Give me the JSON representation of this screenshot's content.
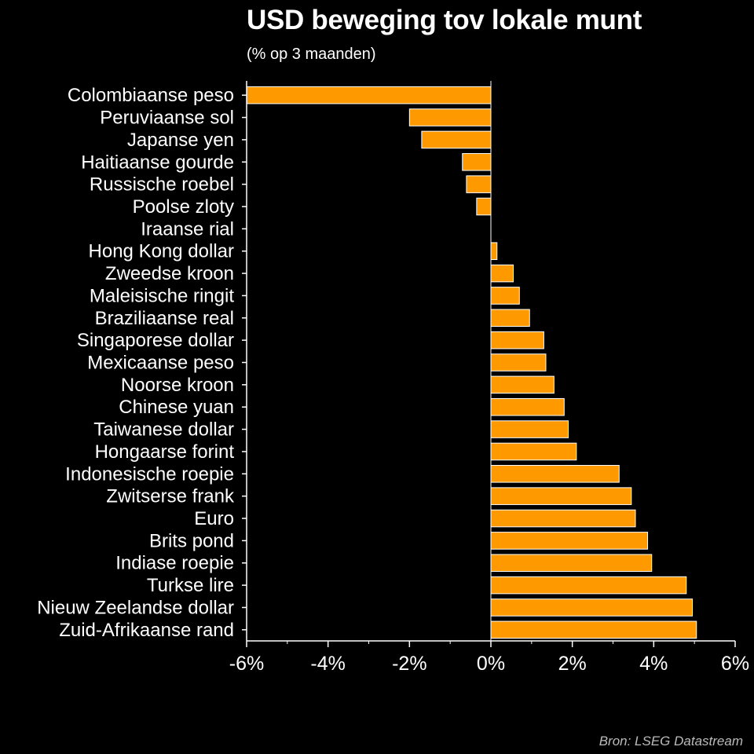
{
  "header": {
    "title": "USD beweging tov lokale munt",
    "subtitle": "(% op 3 maanden)"
  },
  "footer": {
    "source": "Bron: LSEG Datastream"
  },
  "colors": {
    "bar": "#FF9900",
    "bar_outline": "#FFFFFF",
    "background": "#000000",
    "axis": "#FFFFFF"
  },
  "chart_data": {
    "type": "bar",
    "orientation": "horizontal",
    "unit": "%",
    "categories": [
      "Colombiaanse peso",
      "Peruviaanse sol",
      "Japanse yen",
      "Haitiaanse gourde",
      "Russische roebel",
      "Poolse zloty",
      "Iraanse rial",
      "Hong Kong dollar",
      "Zweedse kroon",
      "Maleisische ringit",
      "Braziliaanse real",
      "Singaporese dollar",
      "Mexicaanse peso",
      "Noorse kroon",
      "Chinese yuan",
      "Taiwanese dollar",
      "Hongaarse forint",
      "Indonesische roepie",
      "Zwitserse frank",
      "Euro",
      "Brits pond",
      "Indiase roepie",
      "Turkse lire",
      "Nieuw Zeelandse dollar",
      "Zuid-Afrikaanse rand"
    ],
    "values": [
      -6.0,
      -2.0,
      -1.7,
      -0.7,
      -0.6,
      -0.35,
      0.0,
      0.15,
      0.55,
      0.7,
      0.95,
      1.3,
      1.35,
      1.55,
      1.8,
      1.9,
      2.1,
      3.15,
      3.45,
      3.55,
      3.85,
      3.95,
      4.8,
      4.95,
      5.05
    ],
    "xlim": [
      -6,
      6
    ],
    "x_ticks": [
      -6,
      -4,
      -2,
      0,
      2,
      4,
      6
    ],
    "x_tick_labels": [
      "-6%",
      "-4%",
      "-2%",
      "0%",
      "2%",
      "4%",
      "6%"
    ],
    "grid": false,
    "legend": "none"
  }
}
